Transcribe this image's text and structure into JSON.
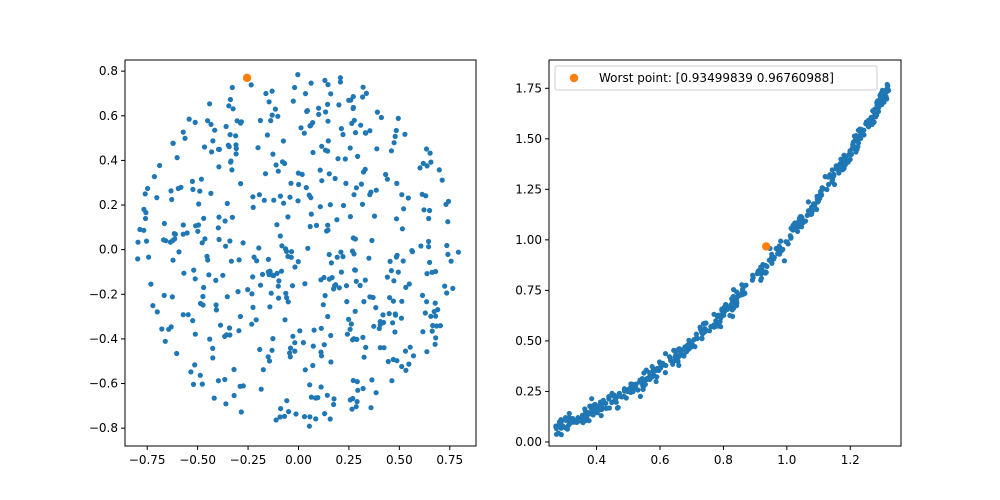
{
  "colors": {
    "series": "#1f77b4",
    "highlight": "#ff7f0e",
    "axes": "#000000",
    "background": "#ffffff"
  },
  "chart_data": [
    {
      "type": "scatter",
      "title": "",
      "xlabel": "",
      "ylabel": "",
      "xlim": [
        -0.86,
        0.88
      ],
      "ylim": [
        -0.88,
        0.85
      ],
      "xticks": [
        -0.75,
        -0.5,
        -0.25,
        0.0,
        0.25,
        0.5,
        0.75
      ],
      "xtick_labels": [
        "−0.75",
        "−0.50",
        "−0.25",
        "0.00",
        "0.25",
        "0.50",
        "0.75"
      ],
      "yticks": [
        -0.8,
        -0.6,
        -0.4,
        -0.2,
        0.0,
        0.2,
        0.4,
        0.6,
        0.8
      ],
      "ytick_labels": [
        "−0.8",
        "−0.6",
        "−0.4",
        "−0.2",
        "0.0",
        "0.2",
        "0.4",
        "0.6",
        "0.8"
      ],
      "grid": false,
      "series": [
        {
          "role": "samples",
          "count": 500,
          "distribution": "uniform in disc",
          "radius": 0.8,
          "color": "#1f77b4"
        },
        {
          "role": "highlight",
          "color": "#ff7f0e",
          "points": [
            [
              -0.255,
              0.77
            ]
          ]
        }
      ]
    },
    {
      "type": "scatter",
      "title": "",
      "xlabel": "",
      "ylabel": "",
      "xlim": [
        0.25,
        1.36
      ],
      "ylim": [
        -0.02,
        1.89
      ],
      "xticks": [
        0.4,
        0.6,
        0.8,
        1.0,
        1.2
      ],
      "xtick_labels": [
        "0.4",
        "0.6",
        "0.8",
        "1.0",
        "1.2"
      ],
      "yticks": [
        0.0,
        0.25,
        0.5,
        0.75,
        1.0,
        1.25,
        1.5,
        1.75
      ],
      "ytick_labels": [
        "0.00",
        "0.25",
        "0.50",
        "0.75",
        "1.00",
        "1.25",
        "1.50",
        "1.75"
      ],
      "grid": false,
      "legend": {
        "position": "top-left",
        "entries": [
          {
            "label": "Worst point: [0.93499839 0.96760988]",
            "color": "#ff7f0e"
          }
        ]
      },
      "series": [
        {
          "role": "samples",
          "count": 500,
          "relation": "y ≈ x²",
          "x_range": [
            0.27,
            1.33
          ],
          "color": "#1f77b4"
        },
        {
          "role": "highlight",
          "name": "Worst point: [0.93499839 0.96760988]",
          "color": "#ff7f0e",
          "points": [
            [
              0.93499839,
              0.96760988
            ]
          ]
        }
      ]
    }
  ]
}
